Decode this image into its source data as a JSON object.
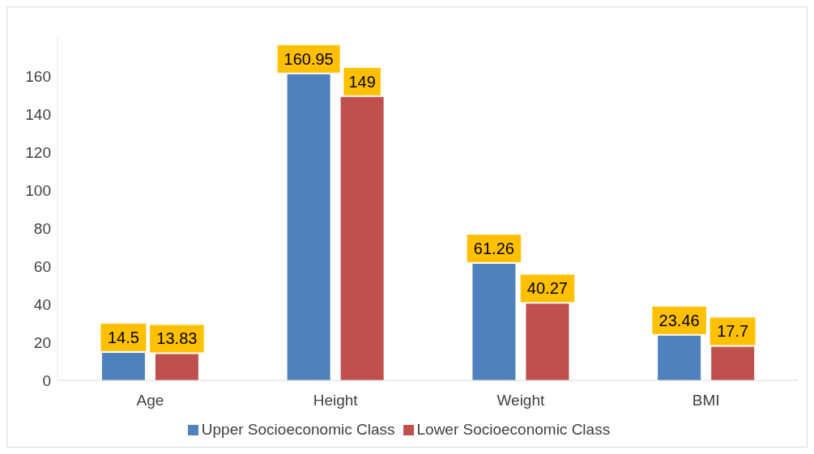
{
  "chart_data": {
    "type": "bar",
    "categories": [
      "Age",
      "Height",
      "Weight",
      "BMI"
    ],
    "series": [
      {
        "name": "Upper Socioeconomic Class",
        "color": "#4f81bd",
        "values": [
          14.5,
          160.95,
          61.26,
          23.46
        ]
      },
      {
        "name": "Lower Socioeconomic Class",
        "color": "#c0504d",
        "values": [
          13.83,
          149,
          40.27,
          17.7
        ]
      }
    ],
    "ylim": [
      0,
      180
    ],
    "yticks": [
      0,
      20,
      40,
      60,
      80,
      100,
      120,
      140,
      160
    ],
    "grid": false,
    "legend": "bottom",
    "data_labels": true
  }
}
